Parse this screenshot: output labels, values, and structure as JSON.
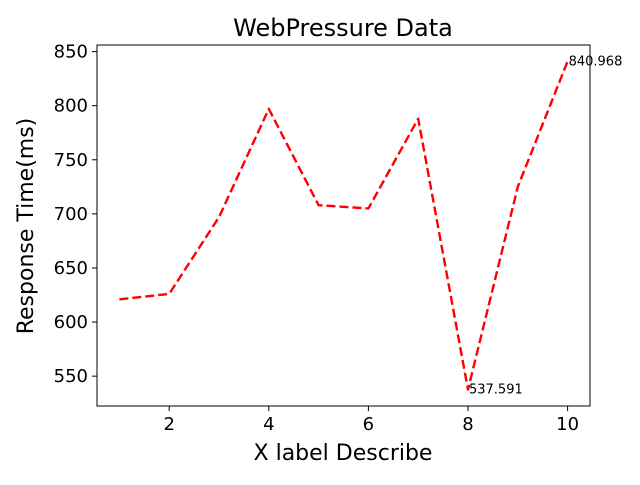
{
  "chart_data": {
    "type": "line",
    "title": "WebPressure Data",
    "xlabel": "X label Describe",
    "ylabel": "Response Time(ms)",
    "x": [
      1,
      2,
      3,
      4,
      5,
      6,
      7,
      8,
      9,
      10
    ],
    "series": [
      {
        "values": [
          621,
          626,
          697,
          797,
          708,
          705,
          788,
          537.591,
          725,
          840.968
        ],
        "color": "#ff0000",
        "line_style": "dashed"
      }
    ],
    "annotations": [
      {
        "x": 8,
        "y": 537.591,
        "text": "537.591"
      },
      {
        "x": 10,
        "y": 840.968,
        "text": "840.968"
      }
    ],
    "xticks": [
      "2",
      "4",
      "6",
      "8",
      "10"
    ],
    "xtick_values": [
      2,
      4,
      6,
      8,
      10
    ],
    "yticks": [
      "550",
      "600",
      "650",
      "700",
      "750",
      "800",
      "850"
    ],
    "ytick_values": [
      550,
      600,
      650,
      700,
      750,
      800,
      850
    ],
    "xlim": [
      0.55,
      10.45
    ],
    "ylim": [
      522.4,
      856.1
    ],
    "grid": false,
    "legend": "none"
  }
}
